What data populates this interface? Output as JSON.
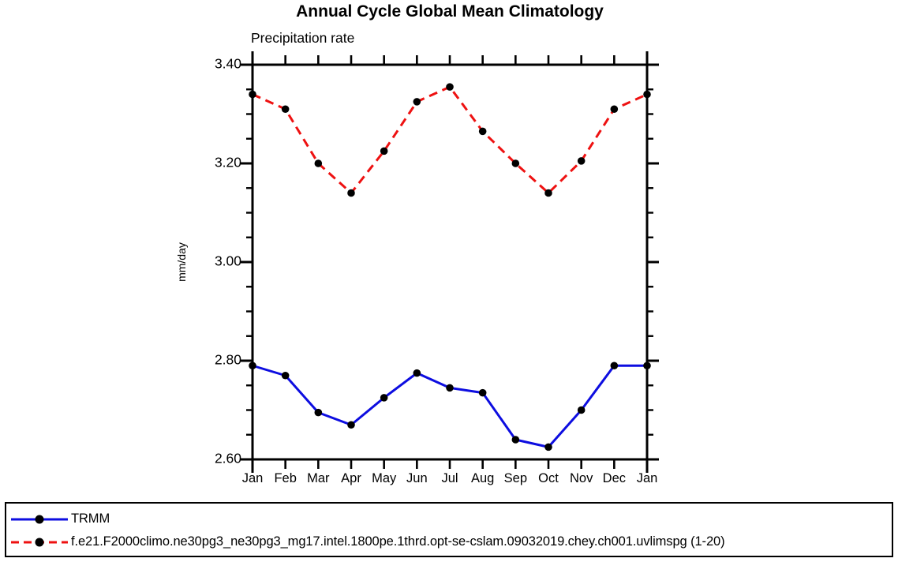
{
  "title": "Annual Cycle Global Mean Climatology",
  "chart_data": {
    "type": "line",
    "title": "Annual Cycle Global Mean Climatology",
    "subtitle": "Precipitation rate",
    "ylabel": "mm/day",
    "categories": [
      "Jan",
      "Feb",
      "Mar",
      "Apr",
      "May",
      "Jun",
      "Jul",
      "Aug",
      "Sep",
      "Oct",
      "Nov",
      "Dec",
      "Jan"
    ],
    "ylim": [
      2.6,
      3.4
    ],
    "ytick_major_step": 0.2,
    "ytick_minor_step": 0.05,
    "ytick_labels": [
      "3.40",
      "3.20",
      "3.00",
      "2.80",
      "2.60"
    ],
    "grid": false,
    "legend_position": "bottom-left-box",
    "series": [
      {
        "name": "TRMM",
        "color": "#0d0de0",
        "line_style": "solid",
        "marker": "filled-circle",
        "marker_color": "#000000",
        "values": [
          2.79,
          2.77,
          2.695,
          2.67,
          2.725,
          2.775,
          2.745,
          2.735,
          2.64,
          2.625,
          2.7,
          2.79,
          2.79
        ]
      },
      {
        "name": "f.e21.F2000climo.ne30pg3_ne30pg3_mg17.intel.1800pe.1thrd.opt-se-cslam.09032019.chey.ch001.uvlimspg (1-20)",
        "color": "#ee1111",
        "line_style": "dashed",
        "marker": "filled-circle",
        "marker_color": "#000000",
        "values": [
          3.34,
          3.31,
          3.2,
          3.14,
          3.225,
          3.325,
          3.355,
          3.265,
          3.2,
          3.14,
          3.205,
          3.31,
          3.34
        ]
      }
    ]
  }
}
